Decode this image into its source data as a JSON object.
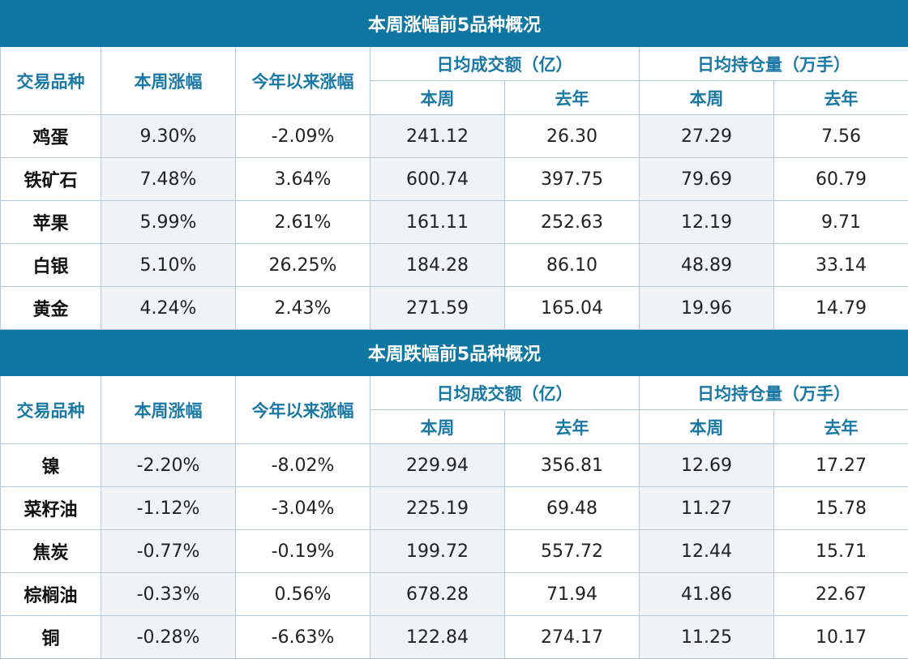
{
  "sections": [
    {
      "title": "本周涨幅前5品种概况",
      "headers": {
        "variety": "交易品种",
        "weekly_change": "本周涨幅",
        "ytd_change": "今年以来涨幅",
        "avg_volume": "日均成交额（亿）",
        "avg_oi": "日均持仓量（万手）",
        "this_week": "本周",
        "last_year": "去年"
      },
      "rows": [
        {
          "name": "鸡蛋",
          "weekly": "9.30%",
          "ytd": "-2.09%",
          "vol_week": "241.12",
          "vol_last": "26.30",
          "oi_week": "27.29",
          "oi_last": "7.56"
        },
        {
          "name": "铁矿石",
          "weekly": "7.48%",
          "ytd": "3.64%",
          "vol_week": "600.74",
          "vol_last": "397.75",
          "oi_week": "79.69",
          "oi_last": "60.79"
        },
        {
          "name": "苹果",
          "weekly": "5.99%",
          "ytd": "2.61%",
          "vol_week": "161.11",
          "vol_last": "252.63",
          "oi_week": "12.19",
          "oi_last": "9.71"
        },
        {
          "name": "白银",
          "weekly": "5.10%",
          "ytd": "26.25%",
          "vol_week": "184.28",
          "vol_last": "86.10",
          "oi_week": "48.89",
          "oi_last": "33.14"
        },
        {
          "name": "黄金",
          "weekly": "4.24%",
          "ytd": "2.43%",
          "vol_week": "271.59",
          "vol_last": "165.04",
          "oi_week": "19.96",
          "oi_last": "14.79"
        }
      ]
    },
    {
      "title": "本周跌幅前5品种概况",
      "headers": {
        "variety": "交易品种",
        "weekly_change": "本周涨幅",
        "ytd_change": "今年以来涨幅",
        "avg_volume": "日均成交额（亿）",
        "avg_oi": "日均持仓量（万手）",
        "this_week": "本周",
        "last_year": "去年"
      },
      "rows": [
        {
          "name": "镍",
          "weekly": "-2.20%",
          "ytd": "-8.02%",
          "vol_week": "229.94",
          "vol_last": "356.81",
          "oi_week": "12.69",
          "oi_last": "17.27"
        },
        {
          "name": "菜籽油",
          "weekly": "-1.12%",
          "ytd": "-3.04%",
          "vol_week": "225.19",
          "vol_last": "69.48",
          "oi_week": "11.27",
          "oi_last": "15.78"
        },
        {
          "name": "焦炭",
          "weekly": "-0.77%",
          "ytd": "-0.19%",
          "vol_week": "199.72",
          "vol_last": "557.72",
          "oi_week": "12.44",
          "oi_last": "15.71"
        },
        {
          "name": "棕榈油",
          "weekly": "-0.33%",
          "ytd": "0.56%",
          "vol_week": "678.28",
          "vol_last": "71.94",
          "oi_week": "41.86",
          "oi_last": "22.67"
        },
        {
          "name": "铜",
          "weekly": "-0.28%",
          "ytd": "-6.63%",
          "vol_week": "122.84",
          "vol_last": "274.17",
          "oi_week": "11.25",
          "oi_last": "10.17"
        }
      ]
    }
  ],
  "colors": {
    "header_bg": "#0e76a0",
    "header_text": "#1a78a5",
    "shade": "#eef3f8",
    "border": "#b7c7d3"
  }
}
